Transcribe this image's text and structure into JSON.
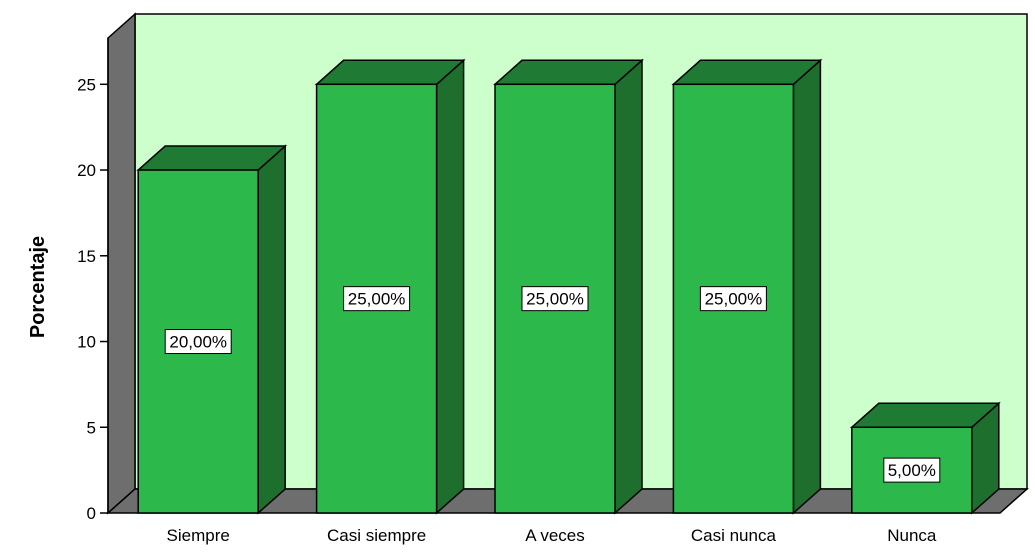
{
  "chart_data": {
    "type": "bar",
    "categories": [
      "Siempre",
      "Casi siempre",
      "A veces",
      "Casi nunca",
      "Nunca"
    ],
    "values": [
      20,
      25,
      25,
      25,
      5
    ],
    "data_labels": [
      "20,00%",
      "25,00%",
      "25,00%",
      "25,00%",
      "5,00%"
    ],
    "ylabel": "Porcentaje",
    "xlabel": "",
    "ylim": [
      0,
      27.7
    ],
    "yticks": [
      "0",
      "5",
      "10",
      "15",
      "20",
      "25"
    ],
    "grid": false,
    "style": "3d",
    "colors": {
      "background": "#ccffcc",
      "bar_front": "#2db84b",
      "bar_top": "#1f7a33",
      "bar_side": "#1e6e2e",
      "wall_side": "#6e6e6e",
      "floor": "#6e6e6e",
      "outline": "#000000",
      "label_box": "#ffffff"
    }
  }
}
